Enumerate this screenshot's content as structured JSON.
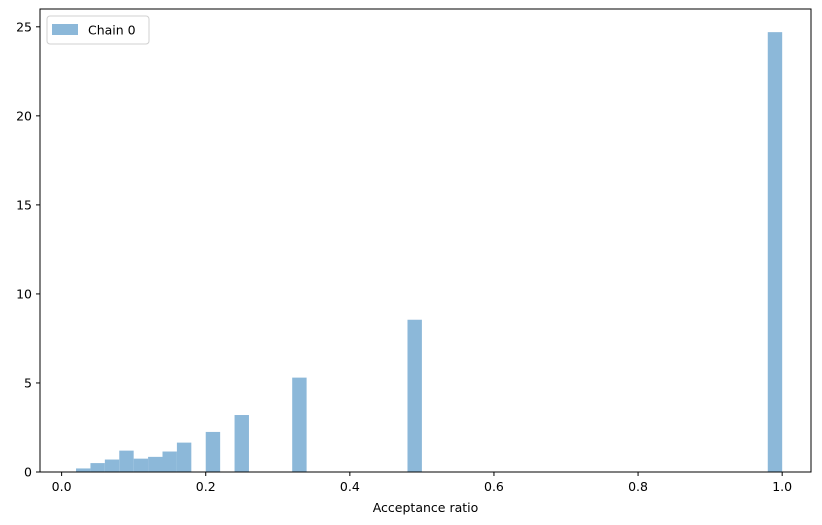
{
  "chart_data": {
    "type": "bar",
    "title": "",
    "xlabel": "Acceptance ratio",
    "ylabel": "",
    "xlim": [
      -0.03,
      1.04
    ],
    "ylim": [
      0,
      26
    ],
    "xticks": [
      "0.0",
      "0.2",
      "0.4",
      "0.6",
      "0.8",
      "1.0"
    ],
    "yticks": [
      "0",
      "5",
      "10",
      "15",
      "20",
      "25"
    ],
    "grid": false,
    "legend_position": "top-left",
    "bin_width": 0.02,
    "series": [
      {
        "name": "Chain 0",
        "color": "#8cb8d9",
        "bins": [
          {
            "x0": 0.02,
            "value": 0.2
          },
          {
            "x0": 0.04,
            "value": 0.5
          },
          {
            "x0": 0.06,
            "value": 0.7
          },
          {
            "x0": 0.08,
            "value": 1.2
          },
          {
            "x0": 0.1,
            "value": 0.75
          },
          {
            "x0": 0.12,
            "value": 0.85
          },
          {
            "x0": 0.14,
            "value": 1.15
          },
          {
            "x0": 0.16,
            "value": 1.65
          },
          {
            "x0": 0.2,
            "value": 2.25
          },
          {
            "x0": 0.24,
            "value": 3.2
          },
          {
            "x0": 0.32,
            "value": 5.3
          },
          {
            "x0": 0.48,
            "value": 8.55
          },
          {
            "x0": 0.98,
            "value": 24.7
          }
        ]
      }
    ]
  }
}
